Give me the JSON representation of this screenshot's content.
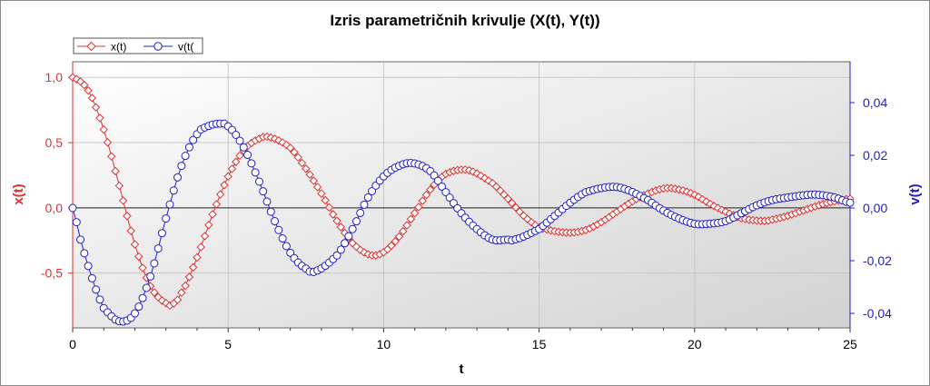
{
  "chart_data": {
    "type": "line",
    "title": "Izris parametričnih krivulje (X(t), Y(t))",
    "xlabel": "t",
    "ylabel_left": "x(t)",
    "ylabel_right": "v(t)",
    "xlim": [
      0,
      25
    ],
    "ylim_left": [
      -0.92,
      1.12
    ],
    "ylim_right": [
      -0.0455,
      0.0555
    ],
    "x_ticks": [
      "0",
      "5",
      "10",
      "15",
      "20",
      "25"
    ],
    "y_left_ticks": [
      "1,0",
      "0,5",
      "0,0",
      "-0,5"
    ],
    "y_right_ticks": [
      "0,04",
      "0,02",
      "0,00",
      "-0,02",
      "-0,04"
    ],
    "grid": true,
    "legend": "top-left",
    "series": [
      {
        "name": "x(t)",
        "axis": "left",
        "color": "#e03030",
        "marker": "diamond",
        "x": [
          0,
          0.5,
          1.0,
          1.5,
          2.0,
          2.5,
          3.0,
          3.2,
          3.5,
          4.0,
          4.5,
          5.0,
          5.5,
          6.0,
          6.35,
          7.0,
          7.5,
          8.0,
          8.5,
          9.0,
          9.55,
          10.0,
          10.5,
          11.0,
          11.5,
          12.0,
          12.7,
          13.5,
          14.0,
          14.5,
          15.0,
          15.9,
          16.5,
          17.0,
          17.5,
          18.0,
          18.5,
          19.05,
          19.5,
          20.0,
          20.5,
          21.0,
          21.5,
          22.2,
          22.5,
          23.0,
          23.5,
          24.0,
          24.5,
          25.0
        ],
        "values": [
          1.0,
          0.9,
          0.6,
          0.17,
          -0.28,
          -0.6,
          -0.73,
          -0.74,
          -0.65,
          -0.38,
          -0.05,
          0.24,
          0.44,
          0.53,
          0.54,
          0.46,
          0.3,
          0.11,
          -0.1,
          -0.27,
          -0.36,
          -0.34,
          -0.22,
          -0.04,
          0.14,
          0.26,
          0.29,
          0.19,
          0.07,
          -0.06,
          -0.15,
          -0.19,
          -0.17,
          -0.11,
          -0.03,
          0.05,
          0.11,
          0.15,
          0.14,
          0.1,
          0.03,
          -0.03,
          -0.08,
          -0.1,
          -0.09,
          -0.06,
          -0.02,
          0.02,
          0.05,
          0.07
        ]
      },
      {
        "name": "v(t(",
        "axis": "right",
        "color": "#2020c8",
        "marker": "circle",
        "x": [
          0,
          0.25,
          0.5,
          0.75,
          1.0,
          1.5,
          2.0,
          2.5,
          3.0,
          3.5,
          4.0,
          4.35,
          4.7,
          5.0,
          5.5,
          6.0,
          6.5,
          7.0,
          7.5,
          7.8,
          8.5,
          9.0,
          9.5,
          10.0,
          10.5,
          10.95,
          11.5,
          12.0,
          12.5,
          13.0,
          13.5,
          14.0,
          14.2,
          15.0,
          15.5,
          16.0,
          16.5,
          17.3,
          17.8,
          18.5,
          19.0,
          19.5,
          20.0,
          20.45,
          21.0,
          21.5,
          22.0,
          22.5,
          23.0,
          23.65,
          24.0,
          24.5,
          25.0
        ],
        "values": [
          0.0,
          -0.012,
          -0.022,
          -0.031,
          -0.038,
          -0.043,
          -0.04,
          -0.026,
          -0.004,
          0.016,
          0.028,
          0.031,
          0.032,
          0.031,
          0.023,
          0.01,
          -0.005,
          -0.017,
          -0.023,
          -0.024,
          -0.018,
          -0.008,
          0.004,
          0.012,
          0.016,
          0.017,
          0.014,
          0.006,
          -0.002,
          -0.008,
          -0.012,
          -0.012,
          -0.012,
          -0.008,
          -0.003,
          0.002,
          0.006,
          0.008,
          0.007,
          0.003,
          -0.001,
          -0.004,
          -0.006,
          -0.006,
          -0.005,
          -0.002,
          0.001,
          0.003,
          0.004,
          0.005,
          0.005,
          0.004,
          0.002
        ]
      }
    ]
  }
}
